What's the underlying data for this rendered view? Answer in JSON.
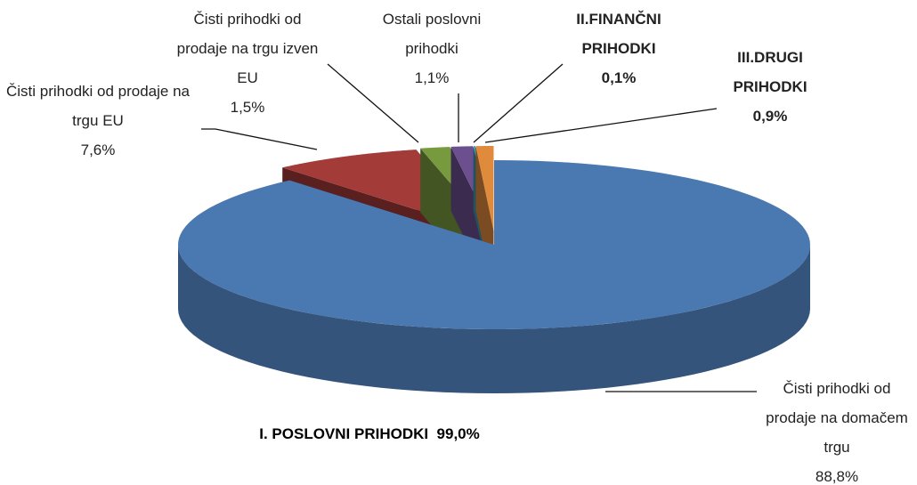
{
  "chart_data": {
    "type": "pie",
    "categories": [
      "Čisti prihodki od prodaje na domačem trgu",
      "Čisti prihodki od prodaje na trgu EU",
      "Čisti prihodki od prodaje na trgu izven EU",
      "Ostali poslovni prihodki",
      "II.FINANČNI PRIHODKI",
      "III.DRUGI PRIHODKI"
    ],
    "values": [
      88.8,
      7.6,
      1.5,
      1.1,
      0.1,
      0.9
    ],
    "value_labels": [
      "88,8%",
      "7,6%",
      "1,5%",
      "1,1%",
      "0,1%",
      "0,9%"
    ],
    "colors": [
      "#4a78b0",
      "#a33b39",
      "#789a3e",
      "#6b4f8e",
      "#3c96ad",
      "#e08a3c"
    ],
    "annotation": "I. POSLOVNI PRIHODKI  99,0%"
  }
}
